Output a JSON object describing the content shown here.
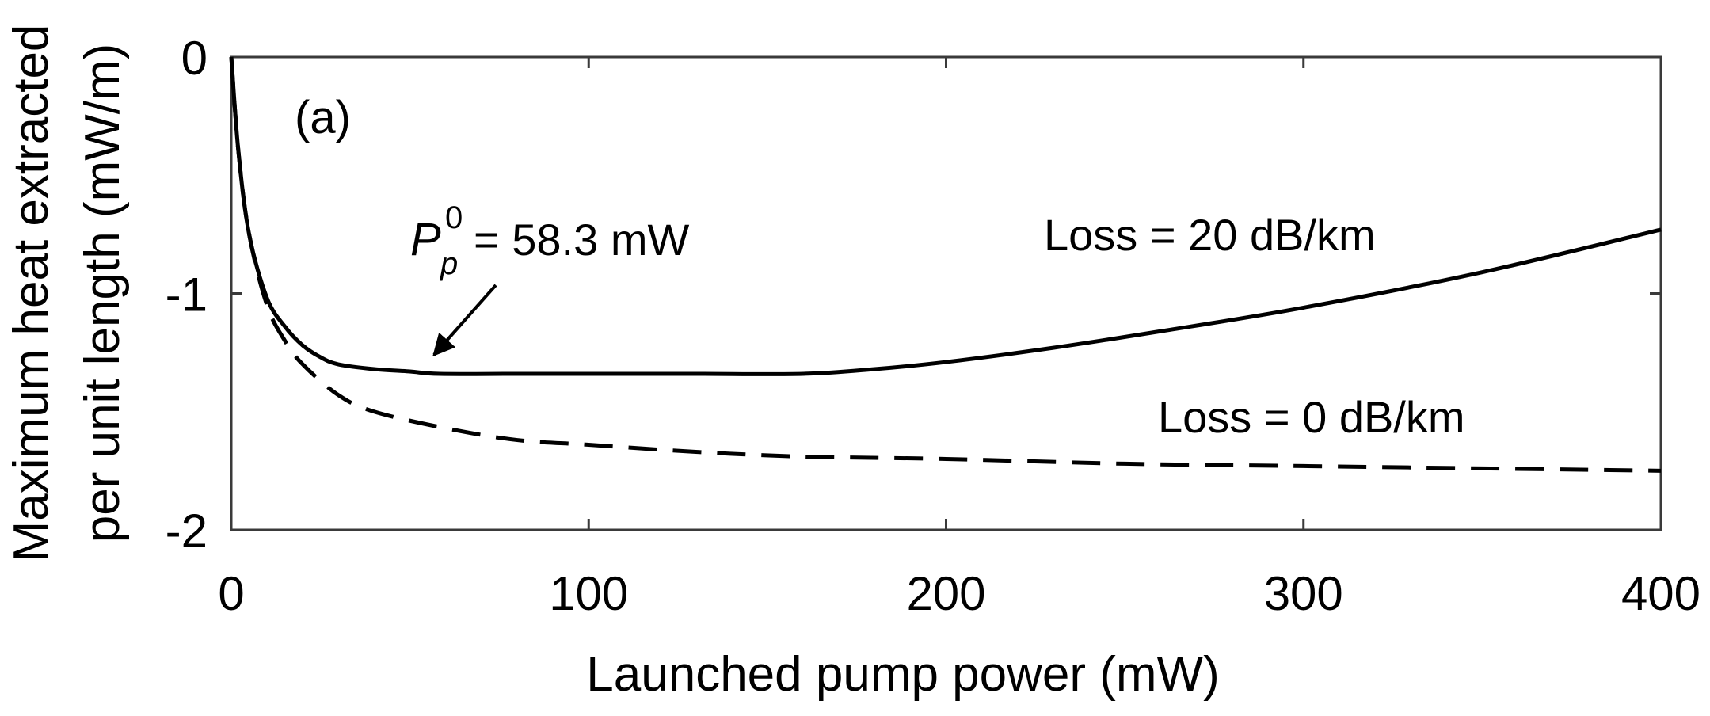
{
  "chart_data": {
    "type": "line",
    "panel_label": "(a)",
    "xlabel": "Launched pump power (mW)",
    "ylabel_lines": [
      "Maximum heat extracted",
      "per unit length (mW/m)"
    ],
    "xlim": [
      0,
      400
    ],
    "ylim": [
      -2,
      0
    ],
    "xticks": [
      0,
      100,
      200,
      300,
      400
    ],
    "yticks": [
      0,
      -1,
      -2
    ],
    "xtick_labels": [
      "0",
      "100",
      "200",
      "300",
      "400"
    ],
    "ytick_labels": [
      "0",
      "-1",
      "-2"
    ],
    "grid": false,
    "series": [
      {
        "name": "Loss = 20 dB/km",
        "style": "solid",
        "x": [
          0,
          2,
          5,
          10,
          15,
          20,
          25,
          30,
          40,
          50,
          58.3,
          80,
          100,
          130,
          160,
          180,
          200,
          230,
          260,
          300,
          350,
          400
        ],
        "y": [
          0,
          -0.4,
          -0.75,
          -1.02,
          -1.14,
          -1.22,
          -1.27,
          -1.3,
          -1.32,
          -1.33,
          -1.34,
          -1.34,
          -1.34,
          -1.34,
          -1.34,
          -1.32,
          -1.29,
          -1.23,
          -1.16,
          -1.06,
          -0.91,
          -0.73
        ]
      },
      {
        "name": "Loss = 0 dB/km",
        "style": "dashed",
        "x": [
          0,
          2,
          5,
          10,
          15,
          20,
          30,
          40,
          60,
          80,
          100,
          130,
          160,
          200,
          250,
          300,
          350,
          400
        ],
        "y": [
          0,
          -0.4,
          -0.75,
          -1.05,
          -1.2,
          -1.3,
          -1.43,
          -1.5,
          -1.57,
          -1.62,
          -1.64,
          -1.67,
          -1.69,
          -1.7,
          -1.72,
          -1.73,
          -1.74,
          -1.75
        ]
      }
    ],
    "annotations": [
      {
        "prefix": "P",
        "sub": "p",
        "sup": "0",
        "text": "= 58.3 mW",
        "arrow_to": [
          58.3,
          -1.34
        ]
      }
    ],
    "colors": {
      "line": "#000000",
      "axis": "#3a3a3a",
      "x_zero_label": "#555555"
    }
  }
}
